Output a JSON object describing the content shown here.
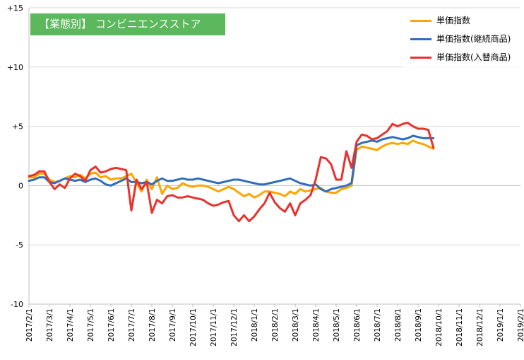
{
  "title": "【業態別】 コンビニエンスストア",
  "chart_data": {
    "type": "line",
    "title": "【業態別】 コンビニエンスストア",
    "xlabel": "",
    "ylabel": "",
    "ylim": [
      -10,
      15
    ],
    "yticks": [
      -10,
      -5,
      0,
      5,
      10,
      15
    ],
    "ytick_labels": [
      "-10",
      "-5",
      "0",
      "+5",
      "+10",
      "+15"
    ],
    "x_ticks": [
      "2017/2/1",
      "2017/3/1",
      "2017/4/1",
      "2017/5/1",
      "2017/6/1",
      "2017/7/1",
      "2017/8/1",
      "2017/9/1",
      "2017/10/1",
      "2017/11/1",
      "2017/12/1",
      "2018/1/1",
      "2018/2/1",
      "2018/3/1",
      "2018/4/1",
      "2018/5/1",
      "2018/6/1",
      "2018/7/1",
      "2018/8/1",
      "2018/9/1",
      "2018/10/1",
      "2018/11/1",
      "2018/12/1",
      "2019/1/1",
      "2019/2/1"
    ],
    "points_per_month": 4,
    "grid": "horizontal",
    "legend_position": "top-right",
    "series": [
      {
        "name": "単価指数",
        "color": "#ffa500",
        "values": [
          0.7,
          0.7,
          1.0,
          1.0,
          0.5,
          0.3,
          0.4,
          0.6,
          0.8,
          0.7,
          0.9,
          0.6,
          1.0,
          1.1,
          0.7,
          0.8,
          0.5,
          0.6,
          0.6,
          0.8,
          1.0,
          0.2,
          -0.5,
          0.5,
          -0.3,
          0.7,
          -0.7,
          0.0,
          -0.3,
          -0.2,
          0.2,
          0.0,
          -0.1,
          0.0,
          0.0,
          -0.1,
          -0.3,
          -0.5,
          -0.3,
          -0.1,
          -0.3,
          -0.6,
          -0.9,
          -0.7,
          -1.0,
          -0.8,
          -0.5,
          -0.5,
          -0.6,
          -0.7,
          -0.9,
          -0.5,
          -0.7,
          -0.3,
          -0.5,
          -0.4,
          -0.3,
          -0.2,
          -0.5,
          -0.6,
          -0.6,
          -0.3,
          -0.2,
          0.0,
          3.0,
          3.3,
          3.2,
          3.1,
          3.0,
          3.3,
          3.5,
          3.6,
          3.5,
          3.6,
          3.5,
          3.8,
          3.6,
          3.5,
          3.3,
          3.1
        ]
      },
      {
        "name": "単価指数(継続商品)",
        "color": "#2f6eba",
        "values": [
          0.4,
          0.5,
          0.7,
          0.7,
          0.3,
          0.2,
          0.4,
          0.6,
          0.5,
          0.4,
          0.5,
          0.3,
          0.5,
          0.6,
          0.4,
          0.1,
          0.0,
          0.2,
          0.4,
          0.6,
          0.3,
          0.3,
          0.2,
          0.3,
          0.1,
          0.4,
          0.6,
          0.4,
          0.4,
          0.5,
          0.6,
          0.5,
          0.5,
          0.6,
          0.5,
          0.4,
          0.3,
          0.2,
          0.3,
          0.4,
          0.5,
          0.5,
          0.4,
          0.3,
          0.2,
          0.1,
          0.1,
          0.2,
          0.3,
          0.4,
          0.5,
          0.6,
          0.4,
          0.2,
          0.1,
          0.0,
          0.1,
          -0.3,
          -0.5,
          -0.3,
          -0.2,
          -0.1,
          0.0,
          0.2,
          3.4,
          3.6,
          3.7,
          3.8,
          3.7,
          3.9,
          4.0,
          4.1,
          4.0,
          3.9,
          4.0,
          4.2,
          4.1,
          4.0,
          4.0,
          4.0
        ]
      },
      {
        "name": "単価指数(入替商品)",
        "color": "#e8322e",
        "values": [
          0.8,
          0.9,
          1.2,
          1.2,
          0.3,
          -0.3,
          0.1,
          -0.2,
          0.6,
          1.0,
          0.8,
          0.4,
          1.3,
          1.6,
          1.1,
          1.2,
          1.4,
          1.5,
          1.4,
          1.3,
          -2.1,
          0.5,
          -0.3,
          0.3,
          -2.3,
          -1.2,
          -1.5,
          -0.9,
          -0.8,
          -1.0,
          -1.0,
          -0.9,
          -1.0,
          -1.1,
          -1.2,
          -1.5,
          -1.7,
          -1.6,
          -1.4,
          -1.3,
          -2.5,
          -3.0,
          -2.5,
          -3.0,
          -2.6,
          -2.0,
          -1.5,
          -0.6,
          -1.4,
          -1.9,
          -2.2,
          -1.5,
          -2.5,
          -1.5,
          -1.2,
          -0.8,
          0.5,
          2.4,
          2.3,
          1.8,
          0.5,
          0.5,
          2.9,
          1.5,
          3.7,
          4.3,
          4.2,
          3.9,
          4.0,
          4.3,
          4.6,
          5.2,
          5.0,
          5.2,
          5.3,
          5.0,
          4.8,
          4.8,
          4.7,
          3.2
        ]
      }
    ]
  }
}
